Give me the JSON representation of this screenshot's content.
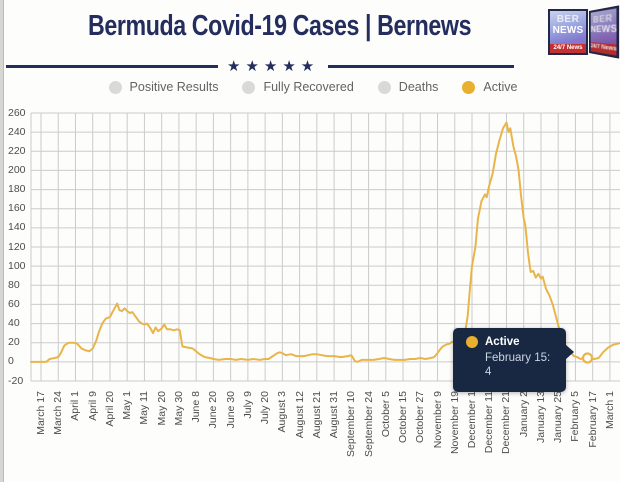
{
  "header": {
    "title": "Bermuda Covid-19 Cases | Bernews",
    "stars": "★★★★★",
    "logo": {
      "line1": "BER",
      "line2": "NEWS",
      "banner": "24/7 News"
    }
  },
  "colors": {
    "navy": "#232d5e",
    "tooltip_bg": "#182843",
    "line_gold": "#e9b54b",
    "legend_gray": "#d9d9d9",
    "legend_gold": "#e9af2e",
    "grid": "#cbcbcb",
    "axis_text": "#4d4d4d"
  },
  "legend": {
    "items": [
      {
        "label": "Positive Results",
        "color": "#d9d9d9",
        "enabled": false
      },
      {
        "label": "Fully Recovered",
        "color": "#d9d9d9",
        "enabled": false
      },
      {
        "label": "Deaths",
        "color": "#d9d9d9",
        "enabled": false
      },
      {
        "label": "Active",
        "color": "#e9af2e",
        "enabled": true
      }
    ]
  },
  "tooltip": {
    "series": "Active",
    "date_label": "February 15:",
    "value": "4"
  },
  "chart_data": {
    "type": "line",
    "title": "Bermuda Covid-19 Cases | Bernews",
    "xlabel": "",
    "ylabel": "",
    "grid": true,
    "legend_position": "top",
    "ylim": [
      -20,
      260
    ],
    "y_ticks": [
      260,
      240,
      220,
      200,
      180,
      160,
      140,
      120,
      100,
      80,
      60,
      40,
      20,
      0,
      -20
    ],
    "x_tick_labels": [
      "March 17",
      "March 24",
      "April 1",
      "April 9",
      "April 20",
      "May 1",
      "May 11",
      "May 20",
      "May 30",
      "June 8",
      "June 20",
      "June 30",
      "July 9",
      "July 20",
      "August 3",
      "August 12",
      "August 21",
      "August 31",
      "September 10",
      "September 24",
      "October 5",
      "October 15",
      "October 27",
      "November 9",
      "November 19",
      "December 1",
      "December 11",
      "December 21",
      "January 2",
      "January 13",
      "January 25",
      "February 5",
      "February 17",
      "March 1"
    ],
    "series": [
      {
        "name": "Positive Results",
        "visible": false
      },
      {
        "name": "Fully Recovered",
        "visible": false
      },
      {
        "name": "Deaths",
        "visible": false
      },
      {
        "name": "Active",
        "visible": true,
        "color": "#e9b54b",
        "points": [
          [
            -0.58,
            0
          ],
          [
            0.3,
            0
          ],
          [
            0.5,
            3
          ],
          [
            0.8,
            4
          ],
          [
            1,
            5
          ],
          [
            1.15,
            9
          ],
          [
            1.35,
            17
          ],
          [
            1.6,
            20
          ],
          [
            1.9,
            20
          ],
          [
            2.1,
            19
          ],
          [
            2.35,
            14
          ],
          [
            2.6,
            12
          ],
          [
            2.8,
            11
          ],
          [
            3,
            14
          ],
          [
            3.2,
            22
          ],
          [
            3.35,
            31
          ],
          [
            3.55,
            40
          ],
          [
            3.75,
            45
          ],
          [
            4,
            47
          ],
          [
            4.15,
            52
          ],
          [
            4.3,
            57
          ],
          [
            4.42,
            61
          ],
          [
            4.55,
            54
          ],
          [
            4.7,
            53
          ],
          [
            4.85,
            56
          ],
          [
            5,
            53
          ],
          [
            5.15,
            51
          ],
          [
            5.3,
            52
          ],
          [
            5.5,
            47
          ],
          [
            5.7,
            42
          ],
          [
            5.85,
            40
          ],
          [
            6,
            39
          ],
          [
            6.15,
            40
          ],
          [
            6.35,
            35
          ],
          [
            6.5,
            30
          ],
          [
            6.65,
            36
          ],
          [
            6.8,
            32
          ],
          [
            7,
            35
          ],
          [
            7.15,
            39
          ],
          [
            7.3,
            34
          ],
          [
            7.5,
            34
          ],
          [
            7.7,
            33
          ],
          [
            7.9,
            34
          ],
          [
            8.05,
            33
          ],
          [
            8.2,
            16
          ],
          [
            8.5,
            15
          ],
          [
            8.8,
            14
          ],
          [
            9,
            11
          ],
          [
            9.2,
            8
          ],
          [
            9.5,
            5
          ],
          [
            9.8,
            4
          ],
          [
            10,
            3
          ],
          [
            10.3,
            2
          ],
          [
            10.7,
            3
          ],
          [
            11,
            3
          ],
          [
            11.3,
            2
          ],
          [
            11.6,
            3
          ],
          [
            12,
            2
          ],
          [
            12.3,
            3
          ],
          [
            12.7,
            2
          ],
          [
            13,
            3
          ],
          [
            13.2,
            3
          ],
          [
            13.45,
            6
          ],
          [
            13.7,
            9
          ],
          [
            13.85,
            10
          ],
          [
            14,
            9
          ],
          [
            14.2,
            7
          ],
          [
            14.5,
            8
          ],
          [
            14.8,
            6
          ],
          [
            15,
            6
          ],
          [
            15.25,
            6
          ],
          [
            15.5,
            7
          ],
          [
            15.75,
            8
          ],
          [
            16,
            8
          ],
          [
            16.3,
            7
          ],
          [
            16.6,
            6
          ],
          [
            17,
            6
          ],
          [
            17.4,
            5
          ],
          [
            17.8,
            6
          ],
          [
            18,
            7
          ],
          [
            18.2,
            1
          ],
          [
            18.35,
            0
          ],
          [
            18.6,
            2
          ],
          [
            19,
            2
          ],
          [
            19.3,
            2
          ],
          [
            19.6,
            3
          ],
          [
            19.9,
            4
          ],
          [
            20.2,
            3
          ],
          [
            20.5,
            2
          ],
          [
            20.8,
            2
          ],
          [
            21.1,
            2
          ],
          [
            21.4,
            3
          ],
          [
            21.7,
            3
          ],
          [
            22,
            4
          ],
          [
            22.3,
            3
          ],
          [
            22.6,
            4
          ],
          [
            22.8,
            5
          ],
          [
            23,
            9
          ],
          [
            23.15,
            13
          ],
          [
            23.3,
            16
          ],
          [
            23.5,
            18
          ],
          [
            23.7,
            19
          ],
          [
            23.85,
            21
          ],
          [
            24,
            22
          ],
          [
            24.15,
            21
          ],
          [
            24.3,
            23
          ],
          [
            24.5,
            26
          ],
          [
            24.62,
            33
          ],
          [
            24.75,
            48
          ],
          [
            24.88,
            76
          ],
          [
            25,
            100
          ],
          [
            25.2,
            120
          ],
          [
            25.35,
            150
          ],
          [
            25.55,
            168
          ],
          [
            25.75,
            175
          ],
          [
            25.85,
            172
          ],
          [
            26,
            184
          ],
          [
            26.2,
            197
          ],
          [
            26.4,
            218
          ],
          [
            26.6,
            232
          ],
          [
            26.8,
            244
          ],
          [
            27,
            250
          ],
          [
            27.12,
            240
          ],
          [
            27.22,
            244
          ],
          [
            27.4,
            225
          ],
          [
            27.55,
            215
          ],
          [
            27.7,
            201
          ],
          [
            27.85,
            173
          ],
          [
            28,
            150
          ],
          [
            28.1,
            142
          ],
          [
            28.25,
            114
          ],
          [
            28.4,
            94
          ],
          [
            28.55,
            95
          ],
          [
            28.7,
            88
          ],
          [
            28.85,
            92
          ],
          [
            29,
            87
          ],
          [
            29.1,
            89
          ],
          [
            29.3,
            76
          ],
          [
            29.5,
            69
          ],
          [
            29.7,
            59
          ],
          [
            29.9,
            45
          ],
          [
            30.1,
            32
          ],
          [
            30.3,
            22
          ],
          [
            30.5,
            14
          ],
          [
            30.7,
            11
          ],
          [
            30.9,
            6
          ],
          [
            31.1,
            5
          ],
          [
            31.3,
            3
          ],
          [
            31.5,
            4
          ],
          [
            31.7,
            4
          ],
          [
            31.9,
            3
          ],
          [
            32.1,
            3
          ],
          [
            32.35,
            4
          ],
          [
            32.6,
            10
          ],
          [
            32.9,
            15
          ],
          [
            33.2,
            18
          ],
          [
            33.45,
            19
          ],
          [
            33.65,
            20
          ]
        ]
      }
    ],
    "annotation": {
      "marker_x_index": 31.7,
      "marker_value": 4,
      "tooltip_text": "Active February 15: 4"
    }
  }
}
